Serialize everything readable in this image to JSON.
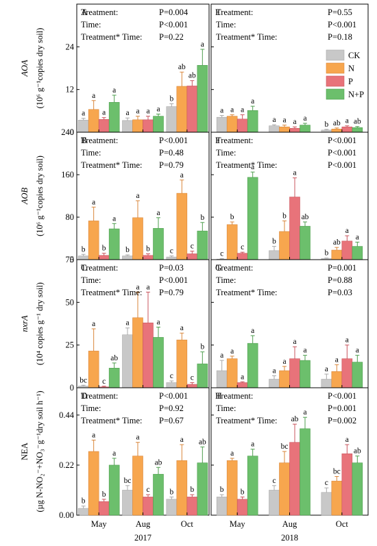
{
  "figure": {
    "x_categories": [
      "May",
      "Aug",
      "Oct"
    ],
    "year_labels": [
      "2017",
      "2018"
    ],
    "legend": [
      {
        "label": "CK",
        "color": "#c8c8c8",
        "edge": "#a8a8a8"
      },
      {
        "label": "N",
        "color": "#f7a64e",
        "edge": "#d9863a"
      },
      {
        "label": "P",
        "color": "#e8737a",
        "edge": "#c9545c"
      },
      {
        "label": "N+P",
        "color": "#6cbf6c",
        "edge": "#4e9e4e"
      }
    ]
  },
  "chart_data": [
    {
      "type": "bar",
      "panel": "A",
      "row": "AOA",
      "year": "2017",
      "ylim": [
        0,
        36
      ],
      "yticks": [
        "0",
        "12",
        "24"
      ],
      "ytick_values": [
        0,
        12,
        24
      ],
      "ylabel": [
        "AOA",
        "(10⁶ g⁻¹copies dry soil)"
      ],
      "categories": [
        "May",
        "Aug",
        "Oct"
      ],
      "series": [
        {
          "name": "CK",
          "values": [
            3.4,
            3.3,
            7.2
          ],
          "errors": [
            0.5,
            0.7,
            0.8
          ],
          "letters": [
            "a",
            "a",
            "b"
          ]
        },
        {
          "name": "N",
          "values": [
            6.4,
            3.5,
            12.9
          ],
          "errors": [
            2.5,
            1.0,
            4.0
          ],
          "letters": [
            "a",
            "a",
            "ab"
          ]
        },
        {
          "name": "P",
          "values": [
            3.6,
            3.5,
            13.0
          ],
          "errors": [
            0.5,
            1.0,
            1.5
          ],
          "letters": [
            "a",
            "a",
            "ab"
          ]
        },
        {
          "name": "N+P",
          "values": [
            8.4,
            4.5,
            18.8
          ],
          "errors": [
            2.0,
            0.6,
            4.5
          ],
          "letters": [
            "a",
            "a",
            "a"
          ]
        }
      ],
      "stats": [
        {
          "label": "Treatment:",
          "value": "P=0.004"
        },
        {
          "label": "Time:",
          "value": "P<0.001"
        },
        {
          "label": "Treatment* Time:",
          "value": "P=0.22"
        }
      ]
    },
    {
      "type": "bar",
      "panel": "E",
      "row": "AOA",
      "year": "2018",
      "ylim": [
        0,
        36
      ],
      "categories": [
        "May",
        "Aug",
        "Oct"
      ],
      "series": [
        {
          "name": "CK",
          "values": [
            4.2,
            1.8,
            0.6
          ],
          "errors": [
            0.5,
            0.3,
            0.2
          ],
          "letters": [
            "a",
            "a",
            "b"
          ]
        },
        {
          "name": "N",
          "values": [
            4.5,
            1.5,
            0.9
          ],
          "errors": [
            0.4,
            0.5,
            0.3
          ],
          "letters": [
            "a",
            "a",
            "ab"
          ]
        },
        {
          "name": "P",
          "values": [
            3.7,
            1.1,
            1.5
          ],
          "errors": [
            1.2,
            0.4,
            0.3
          ],
          "letters": [
            "a",
            "a",
            "a"
          ]
        },
        {
          "name": "N+P",
          "values": [
            6.1,
            2.0,
            1.3
          ],
          "errors": [
            1.2,
            0.5,
            0.3
          ],
          "letters": [
            "a",
            "a",
            "ab"
          ]
        }
      ],
      "stats": [
        {
          "label": "Treatment:",
          "value": "P=0.55"
        },
        {
          "label": "Time:",
          "value": "P<0.001"
        },
        {
          "label": "Treatment* Time:",
          "value": "P=0.18"
        }
      ]
    },
    {
      "type": "bar",
      "panel": "B",
      "row": "AOB",
      "year": "2017",
      "ylim": [
        0,
        240
      ],
      "yticks": [
        "0",
        "80",
        "160",
        "240"
      ],
      "ytick_values": [
        0,
        80,
        160,
        240
      ],
      "ylabel": [
        "AOB",
        "(10⁶ g⁻¹copies dry soil)"
      ],
      "categories": [
        "May",
        "Aug",
        "Oct"
      ],
      "series": [
        {
          "name": "CK",
          "values": [
            7,
            7,
            5
          ],
          "errors": [
            3,
            2,
            2
          ],
          "letters": [
            "b",
            "b",
            "c"
          ]
        },
        {
          "name": "N",
          "values": [
            73,
            79,
            125
          ],
          "errors": [
            26,
            32,
            25
          ],
          "letters": [
            "a",
            "a",
            "a"
          ]
        },
        {
          "name": "P",
          "values": [
            8,
            8,
            11
          ],
          "errors": [
            4,
            3,
            5
          ],
          "letters": [
            "b",
            "b",
            "c"
          ]
        },
        {
          "name": "N+P",
          "values": [
            58,
            59,
            54
          ],
          "errors": [
            10,
            20,
            16
          ],
          "letters": [
            "a",
            "a",
            "b"
          ]
        }
      ],
      "stats": [
        {
          "label": "Treatment:",
          "value": "P<0.001"
        },
        {
          "label": "Time:",
          "value": "P=0.48"
        },
        {
          "label": "Treatment* Time:",
          "value": "P=0.79"
        }
      ]
    },
    {
      "type": "bar",
      "panel": "F",
      "row": "AOB",
      "year": "2018",
      "ylim": [
        0,
        240
      ],
      "categories": [
        "May",
        "Aug",
        "Oct"
      ],
      "series": [
        {
          "name": "CK",
          "values": [
            1,
            17,
            2
          ],
          "errors": [
            1,
            8,
            1
          ],
          "letters": [
            "c",
            "b",
            "b"
          ]
        },
        {
          "name": "N",
          "values": [
            66,
            53,
            18
          ],
          "errors": [
            5,
            20,
            5
          ],
          "letters": [
            "b",
            "b",
            "ab"
          ]
        },
        {
          "name": "P",
          "values": [
            12,
            118,
            35
          ],
          "errors": [
            2,
            36,
            10
          ],
          "letters": [
            "c",
            "a",
            "a"
          ]
        },
        {
          "name": "N+P",
          "values": [
            155,
            63,
            25
          ],
          "errors": [
            10,
            8,
            8
          ],
          "letters": [
            "a",
            "ab",
            "a"
          ]
        }
      ],
      "stats": [
        {
          "label": "Treatment:",
          "value": "P<0.001"
        },
        {
          "label": "Time:",
          "value": "P<0.001"
        },
        {
          "label": "Treatment* Time:",
          "value": "P<0.001"
        }
      ]
    },
    {
      "type": "bar",
      "panel": "C",
      "row": "nxrA",
      "year": "2017",
      "ylim": [
        0,
        75
      ],
      "yticks": [
        "0",
        "25",
        "50",
        "75"
      ],
      "ytick_values": [
        0,
        25,
        50,
        75
      ],
      "ylabel": [
        "nxrA",
        "(10⁴ copies g⁻¹ dry soil)"
      ],
      "categories": [
        "May",
        "Aug",
        "Oct"
      ],
      "series": [
        {
          "name": "CK",
          "values": [
            1.0,
            31,
            3
          ],
          "errors": [
            0.5,
            4,
            1
          ],
          "letters": [
            "bc",
            "a",
            "c"
          ]
        },
        {
          "name": "N",
          "values": [
            21.5,
            41,
            28
          ],
          "errors": [
            13,
            15,
            4
          ],
          "letters": [
            "a",
            "a",
            "a"
          ]
        },
        {
          "name": "P",
          "values": [
            0.5,
            38,
            2
          ],
          "errors": [
            0.4,
            18,
            1
          ],
          "letters": [
            "c",
            "a",
            "c"
          ]
        },
        {
          "name": "N+P",
          "values": [
            11.5,
            29.5,
            14
          ],
          "errors": [
            3,
            6,
            7
          ],
          "letters": [
            "ab",
            "a",
            "b"
          ]
        }
      ],
      "stats": [
        {
          "label": "Treatment:",
          "value": "P=0.03"
        },
        {
          "label": "Time:",
          "value": "P<0.001"
        },
        {
          "label": "Treatment* Time:",
          "value": "P=0.79"
        }
      ]
    },
    {
      "type": "bar",
      "panel": "G",
      "row": "nxrA",
      "year": "2018",
      "ylim": [
        0,
        75
      ],
      "categories": [
        "May",
        "Aug",
        "Oct"
      ],
      "series": [
        {
          "name": "CK",
          "values": [
            10,
            5,
            5
          ],
          "errors": [
            6,
            2,
            3
          ],
          "letters": [
            "a",
            "a",
            "a"
          ]
        },
        {
          "name": "N",
          "values": [
            17,
            10,
            9.5
          ],
          "errors": [
            1.5,
            2.5,
            4
          ],
          "letters": [
            "a",
            "a",
            "a"
          ]
        },
        {
          "name": "P",
          "values": [
            3,
            17,
            17
          ],
          "errors": [
            0.5,
            7,
            8
          ],
          "letters": [
            "a",
            "a",
            "a"
          ]
        },
        {
          "name": "N+P",
          "values": [
            26,
            16,
            15
          ],
          "errors": [
            4.5,
            3,
            4
          ],
          "letters": [
            "a",
            "a",
            "a"
          ]
        }
      ],
      "stats": [
        {
          "label": "Treatment:",
          "value": "P=0.001"
        },
        {
          "label": "Time:",
          "value": "P=0.88"
        },
        {
          "label": "Treatment* Time:",
          "value": "P=0.03"
        }
      ]
    },
    {
      "type": "bar",
      "panel": "D",
      "row": "NEA",
      "year": "2017",
      "ylim": [
        0,
        0.56
      ],
      "yticks": [
        "0.00",
        "0.22",
        "0.44"
      ],
      "ytick_values": [
        0,
        0.22,
        0.44
      ],
      "ylabel": [
        "NEA",
        "(µg N-NO₂⁻+NO₃⁻g⁻¹dry soil h⁻¹)"
      ],
      "categories": [
        "May",
        "Aug",
        "Oct"
      ],
      "series": [
        {
          "name": "CK",
          "values": [
            0.03,
            0.11,
            0.07
          ],
          "errors": [
            0.01,
            0.02,
            0.01
          ],
          "letters": [
            "b",
            "bc",
            "b"
          ]
        },
        {
          "name": "N",
          "values": [
            0.28,
            0.26,
            0.24
          ],
          "errors": [
            0.05,
            0.06,
            0.07
          ],
          "letters": [
            "a",
            "a",
            "a"
          ]
        },
        {
          "name": "P",
          "values": [
            0.06,
            0.08,
            0.08
          ],
          "errors": [
            0.01,
            0.01,
            0.01
          ],
          "letters": [
            "b",
            "c",
            "b"
          ]
        },
        {
          "name": "N+P",
          "values": [
            0.22,
            0.18,
            0.23
          ],
          "errors": [
            0.03,
            0.03,
            0.07
          ],
          "letters": [
            "a",
            "ab",
            "ab"
          ]
        }
      ],
      "stats": [
        {
          "label": "Treatment:",
          "value": "P<0.001"
        },
        {
          "label": "Time:",
          "value": "P=0.92"
        },
        {
          "label": "Treatment* Time:",
          "value": "P=0.67"
        }
      ]
    },
    {
      "type": "bar",
      "panel": "H",
      "row": "NEA",
      "year": "2018",
      "ylim": [
        0,
        0.56
      ],
      "categories": [
        "May",
        "Aug",
        "Oct"
      ],
      "series": [
        {
          "name": "CK",
          "values": [
            0.08,
            0.11,
            0.1
          ],
          "errors": [
            0.01,
            0.02,
            0.02
          ],
          "letters": [
            "b",
            "c",
            "c"
          ]
        },
        {
          "name": "N",
          "values": [
            0.24,
            0.23,
            0.15
          ],
          "errors": [
            0.01,
            0.05,
            0.02
          ],
          "letters": [
            "a",
            "bc",
            "bc"
          ]
        },
        {
          "name": "P",
          "values": [
            0.07,
            0.32,
            0.27
          ],
          "errors": [
            0.01,
            0.08,
            0.04
          ],
          "letters": [
            "b",
            "ab",
            "a"
          ]
        },
        {
          "name": "N+P",
          "values": [
            0.26,
            0.38,
            0.23
          ],
          "errors": [
            0.03,
            0.05,
            0.03
          ],
          "letters": [
            "a",
            "a",
            "ab"
          ]
        }
      ],
      "stats": [
        {
          "label": "Treatment:",
          "value": "P<0.001"
        },
        {
          "label": "Time:",
          "value": "P=0.001"
        },
        {
          "label": "Treatment* Time:",
          "value": "P=0.002"
        }
      ]
    }
  ]
}
